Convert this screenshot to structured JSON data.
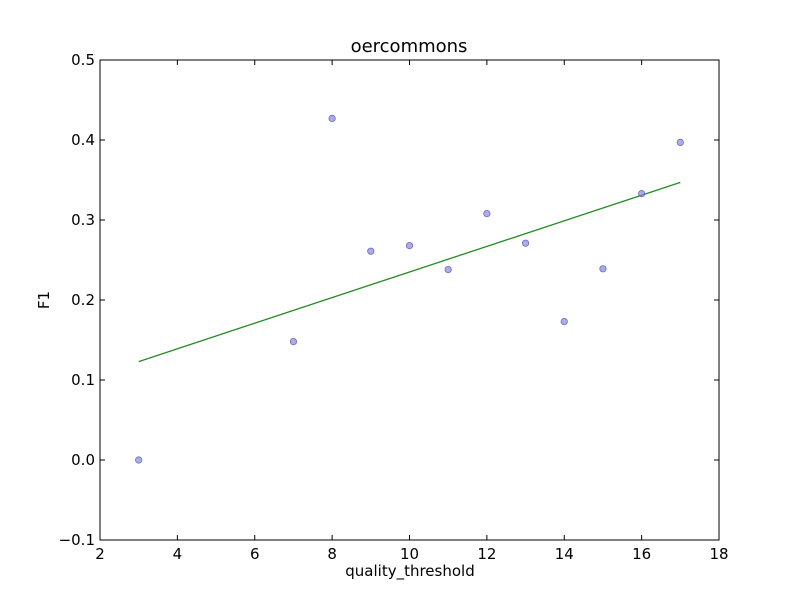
{
  "chart_data": {
    "type": "scatter",
    "title": "oercommons",
    "xlabel": "quality_threshold",
    "ylabel": "F1",
    "xlim": [
      2,
      18
    ],
    "ylim": [
      -0.1,
      0.5
    ],
    "xticks": [
      "2",
      "4",
      "6",
      "8",
      "10",
      "12",
      "14",
      "16",
      "18"
    ],
    "yticks": [
      "−0.1",
      "0.0",
      "0.1",
      "0.2",
      "0.3",
      "0.4",
      "0.5"
    ],
    "grid": false,
    "series": [
      {
        "type": "scatter",
        "points": [
          {
            "x": 3,
            "y": 0.0
          },
          {
            "x": 7,
            "y": 0.148
          },
          {
            "x": 8,
            "y": 0.427
          },
          {
            "x": 9,
            "y": 0.261
          },
          {
            "x": 10,
            "y": 0.268
          },
          {
            "x": 11,
            "y": 0.238
          },
          {
            "x": 12,
            "y": 0.308
          },
          {
            "x": 13,
            "y": 0.271
          },
          {
            "x": 14,
            "y": 0.173
          },
          {
            "x": 15,
            "y": 0.239
          },
          {
            "x": 16,
            "y": 0.333
          },
          {
            "x": 17,
            "y": 0.397
          }
        ],
        "color": "#8080e0"
      },
      {
        "type": "line",
        "points": [
          {
            "x": 3,
            "y": 0.123
          },
          {
            "x": 17,
            "y": 0.347
          }
        ],
        "color": "#228b22"
      }
    ]
  }
}
